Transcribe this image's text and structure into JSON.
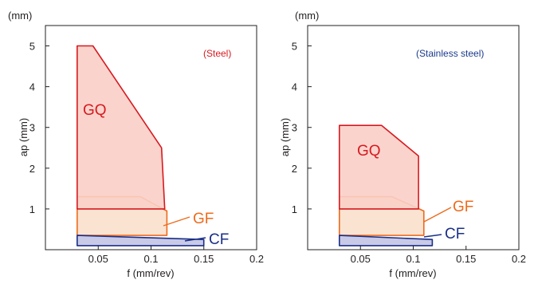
{
  "colors": {
    "steel_tag": "#d71920",
    "stainless_tag": "#1b3a8c",
    "GQ_stroke": "#d71920",
    "GQ_fill": "#f9cfc6",
    "GF_stroke": "#ec6b1c",
    "GF_fill": "#fbe1cf",
    "CF_stroke": "#1b2f87",
    "CF_fill": "#c6c7e6",
    "axis": "#231f20"
  },
  "chart_data": [
    {
      "type": "area",
      "title": "(Steel)",
      "xlabel": "f (mm/rev)",
      "ylabel": "ap (mm)",
      "y_unit": "(mm)",
      "xlim": [
        0,
        0.2
      ],
      "ylim": [
        0,
        5.5
      ],
      "xticks": [
        "0.05",
        "0.1",
        "0.15",
        "0.2"
      ],
      "yticks": [
        "1",
        "2",
        "3",
        "4",
        "5"
      ],
      "regions": [
        {
          "name": "GQ",
          "f_range": [
            0.03,
            0.113
          ],
          "ap_range": [
            1.0,
            5.0
          ],
          "points": [
            [
              0.03,
              1.0
            ],
            [
              0.03,
              5.0
            ],
            [
              0.045,
              5.0
            ],
            [
              0.11,
              2.5
            ],
            [
              0.113,
              1.0
            ]
          ]
        },
        {
          "name": "GF",
          "f_range": [
            0.03,
            0.115
          ],
          "ap_range": [
            0.35,
            1.3
          ],
          "points": [
            [
              0.03,
              0.35
            ],
            [
              0.03,
              1.3
            ],
            [
              0.09,
              1.3
            ],
            [
              0.115,
              0.95
            ],
            [
              0.115,
              0.35
            ]
          ]
        },
        {
          "name": "CF",
          "f_range": [
            0.03,
            0.15
          ],
          "ap_range": [
            0.1,
            0.35
          ],
          "points": [
            [
              0.03,
              0.1
            ],
            [
              0.03,
              0.35
            ],
            [
              0.15,
              0.25
            ],
            [
              0.15,
              0.1
            ]
          ]
        }
      ]
    },
    {
      "type": "area",
      "title": "(Stainless steel)",
      "xlabel": "f (mm/rev)",
      "ylabel": "ap (mm)",
      "y_unit": "(mm)",
      "xlim": [
        0,
        0.2
      ],
      "ylim": [
        0,
        5.5
      ],
      "xticks": [
        "0.05",
        "0.1",
        "0.15",
        "0.2"
      ],
      "yticks": [
        "1",
        "2",
        "3",
        "4",
        "5"
      ],
      "regions": [
        {
          "name": "GQ",
          "f_range": [
            0.03,
            0.105
          ],
          "ap_range": [
            1.0,
            3.05
          ],
          "points": [
            [
              0.03,
              1.0
            ],
            [
              0.03,
              3.05
            ],
            [
              0.07,
              3.05
            ],
            [
              0.105,
              2.3
            ],
            [
              0.105,
              1.0
            ]
          ]
        },
        {
          "name": "GF",
          "f_range": [
            0.03,
            0.11
          ],
          "ap_range": [
            0.35,
            1.3
          ],
          "points": [
            [
              0.03,
              0.35
            ],
            [
              0.03,
              1.3
            ],
            [
              0.08,
              1.3
            ],
            [
              0.11,
              0.95
            ],
            [
              0.11,
              0.35
            ]
          ]
        },
        {
          "name": "CF",
          "f_range": [
            0.03,
            0.118
          ],
          "ap_range": [
            0.1,
            0.35
          ],
          "points": [
            [
              0.03,
              0.1
            ],
            [
              0.03,
              0.35
            ],
            [
              0.118,
              0.25
            ],
            [
              0.118,
              0.1
            ]
          ]
        }
      ]
    }
  ]
}
